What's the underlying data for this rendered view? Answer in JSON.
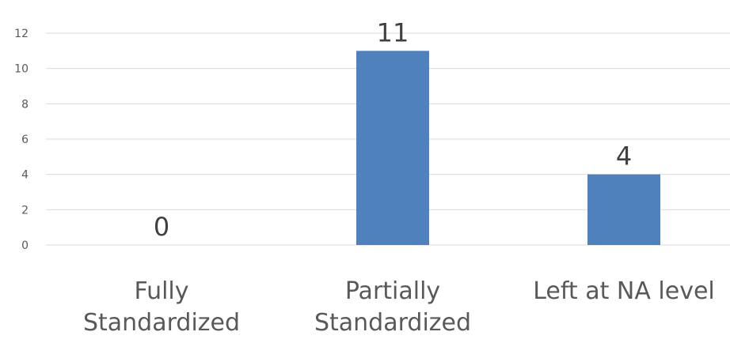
{
  "chart_data": {
    "type": "bar",
    "title": "",
    "xlabel": "",
    "ylabel": "",
    "categories": [
      [
        "Fully",
        "Standardized"
      ],
      [
        "Partially",
        "Standardized"
      ],
      [
        "Left at NA level"
      ]
    ],
    "values": [
      0,
      11,
      4
    ],
    "ylim": [
      0,
      12
    ],
    "yticks": [
      0,
      2,
      4,
      6,
      8,
      10,
      12
    ],
    "grid": true,
    "legend": "none",
    "bar_color": "#4f81bd",
    "grid_color": "#d9d9d9"
  }
}
